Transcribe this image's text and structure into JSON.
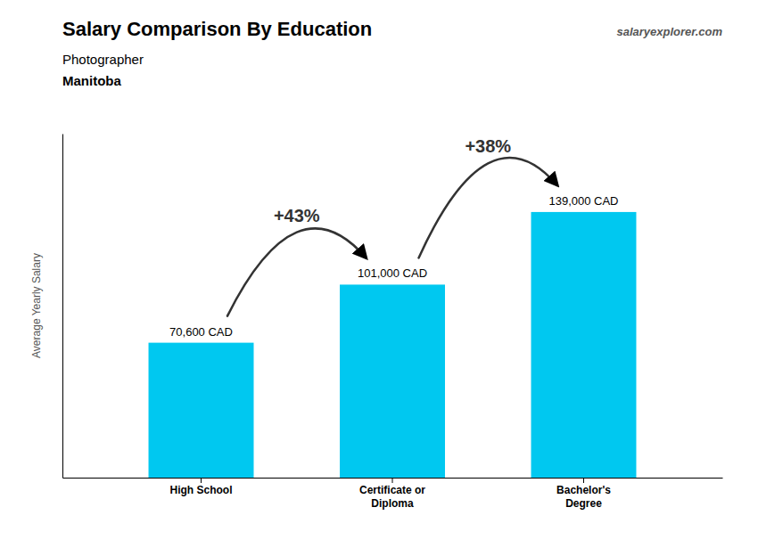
{
  "chart_data": {
    "type": "bar",
    "title": "Salary Comparison By Education",
    "subtitle": [
      "Photographer",
      "Manitoba"
    ],
    "y_label": "Average Yearly Salary",
    "categories": [
      "High School",
      "Certificate or\nDiploma",
      "Bachelor's\nDegree"
    ],
    "values": [
      70600,
      101000,
      139000
    ],
    "value_labels": [
      "70,600 CAD",
      "101,000 CAD",
      "139,000 CAD"
    ],
    "data_labels": true,
    "annotations": [
      "+43%",
      "+38%",
      "salaryexplorer.com"
    ],
    "color": "#00c8f0",
    "ylim": [
      0,
      180000
    ],
    "tick_labels": "x",
    "grid": false
  }
}
